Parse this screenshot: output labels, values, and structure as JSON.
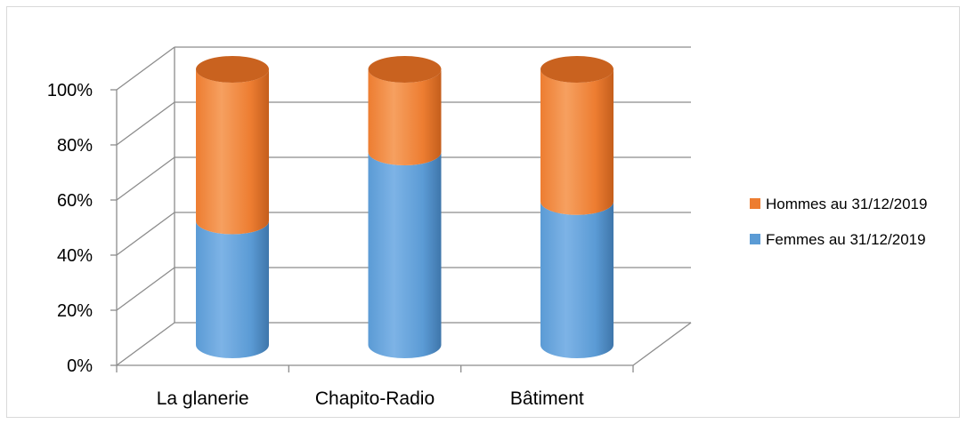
{
  "chart_data": {
    "type": "bar",
    "stacked": "100%",
    "shape": "3d-cylinder",
    "categories": [
      "La glanerie",
      "Chapito-Radio",
      "Bâtiment"
    ],
    "series": [
      {
        "name": "Femmes au 31/12/2019",
        "values": [
          45,
          70,
          52
        ],
        "color": "#5b9bd5"
      },
      {
        "name": "Hommes au 31/12/2019",
        "values": [
          55,
          30,
          48
        ],
        "color": "#ed7d31"
      }
    ],
    "y_ticks": [
      "0%",
      "20%",
      "40%",
      "60%",
      "80%",
      "100%"
    ],
    "ylim": [
      0,
      100
    ],
    "legend_position": "right",
    "legend_order": [
      "Hommes au 31/12/2019",
      "Femmes au 31/12/2019"
    ],
    "grid": true
  }
}
